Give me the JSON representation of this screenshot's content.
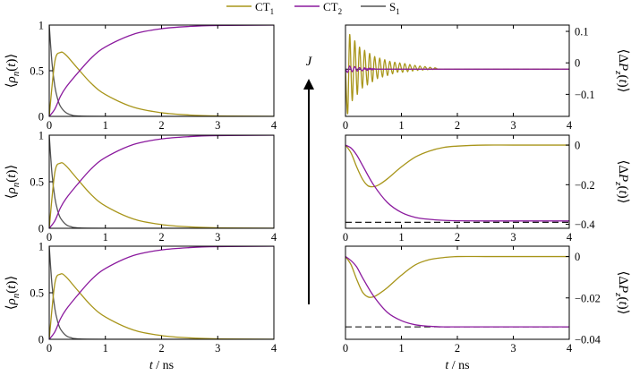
{
  "colors": {
    "CT1": "#a8951a",
    "CT2": "#8b1a9e",
    "S1": "#555555",
    "axis": "#000000",
    "dashed": "#000000"
  },
  "legend": {
    "items": [
      {
        "key": "CT1",
        "label": "CT",
        "sub": "1"
      },
      {
        "key": "CT2",
        "label": "CT",
        "sub": "2"
      },
      {
        "key": "S1",
        "label": "S",
        "sub": "1"
      }
    ]
  },
  "labels": {
    "left_ylabel": "⟨ρn(t)⟩",
    "right_ylabel": "⟨ΔPz(t)⟩",
    "xlabel": "t / ns",
    "arrow": "J"
  },
  "chart_data": [
    {
      "type": "line",
      "panel": "left-top",
      "xlim": [
        0,
        4
      ],
      "ylim": [
        0,
        1
      ],
      "xticks": [
        "0",
        "1",
        "2",
        "3",
        "4"
      ],
      "yticks": [
        "0",
        "0.5",
        "1"
      ],
      "series": [
        {
          "name": "CT1",
          "x": [
            0,
            0.1,
            0.2,
            0.3,
            0.5,
            0.75,
            1,
            1.5,
            2,
            2.5,
            3,
            4
          ],
          "values": [
            0,
            0.6,
            0.7,
            0.67,
            0.53,
            0.36,
            0.24,
            0.1,
            0.04,
            0.015,
            0.005,
            0
          ]
        },
        {
          "name": "CT2",
          "x": [
            0,
            0.1,
            0.2,
            0.3,
            0.5,
            0.75,
            1,
            1.5,
            2,
            2.5,
            3,
            4
          ],
          "values": [
            0,
            0.08,
            0.22,
            0.32,
            0.47,
            0.64,
            0.76,
            0.9,
            0.96,
            0.985,
            0.995,
            1
          ]
        },
        {
          "name": "S1",
          "x": [
            0,
            0.05,
            0.1,
            0.15,
            0.2,
            0.3,
            0.4,
            0.5,
            1,
            4
          ],
          "values": [
            1,
            0.58,
            0.33,
            0.19,
            0.11,
            0.04,
            0.015,
            0.005,
            0,
            0
          ]
        }
      ]
    },
    {
      "type": "line",
      "panel": "left-middle",
      "xlim": [
        0,
        4
      ],
      "ylim": [
        0,
        1
      ],
      "xticks": [
        "0",
        "1",
        "2",
        "3",
        "4"
      ],
      "yticks": [
        "0",
        "0.5",
        "1"
      ],
      "series": [
        {
          "name": "CT1",
          "x": [
            0,
            0.1,
            0.2,
            0.3,
            0.5,
            0.75,
            1,
            1.5,
            2,
            2.5,
            3,
            4
          ],
          "values": [
            0,
            0.6,
            0.7,
            0.67,
            0.53,
            0.36,
            0.24,
            0.1,
            0.04,
            0.015,
            0.005,
            0
          ]
        },
        {
          "name": "CT2",
          "x": [
            0,
            0.1,
            0.2,
            0.3,
            0.5,
            0.75,
            1,
            1.5,
            2,
            2.5,
            3,
            4
          ],
          "values": [
            0,
            0.08,
            0.22,
            0.32,
            0.47,
            0.64,
            0.76,
            0.9,
            0.96,
            0.985,
            0.995,
            1
          ]
        },
        {
          "name": "S1",
          "x": [
            0,
            0.05,
            0.1,
            0.15,
            0.2,
            0.3,
            0.4,
            0.5,
            1,
            4
          ],
          "values": [
            1,
            0.58,
            0.33,
            0.19,
            0.11,
            0.04,
            0.015,
            0.005,
            0,
            0
          ]
        }
      ]
    },
    {
      "type": "line",
      "panel": "left-bottom",
      "xlim": [
        0,
        4
      ],
      "ylim": [
        0,
        1
      ],
      "xticks": [
        "0",
        "1",
        "2",
        "3",
        "4"
      ],
      "yticks": [
        "0",
        "0.5",
        "1"
      ],
      "series": [
        {
          "name": "CT1",
          "x": [
            0,
            0.1,
            0.2,
            0.3,
            0.5,
            0.75,
            1,
            1.5,
            2,
            2.5,
            3,
            4
          ],
          "values": [
            0,
            0.6,
            0.7,
            0.67,
            0.53,
            0.36,
            0.24,
            0.1,
            0.04,
            0.015,
            0.005,
            0
          ]
        },
        {
          "name": "CT2",
          "x": [
            0,
            0.1,
            0.2,
            0.3,
            0.5,
            0.75,
            1,
            1.5,
            2,
            2.5,
            3,
            4
          ],
          "values": [
            0,
            0.08,
            0.22,
            0.32,
            0.47,
            0.64,
            0.76,
            0.9,
            0.96,
            0.985,
            0.995,
            1
          ]
        },
        {
          "name": "S1",
          "x": [
            0,
            0.05,
            0.1,
            0.15,
            0.2,
            0.3,
            0.4,
            0.5,
            1,
            4
          ],
          "values": [
            1,
            0.58,
            0.33,
            0.19,
            0.11,
            0.04,
            0.015,
            0.005,
            0,
            0
          ]
        }
      ]
    },
    {
      "type": "line",
      "panel": "right-top",
      "xlim": [
        0,
        4
      ],
      "ylim": [
        -0.17,
        0.12
      ],
      "xticks": [
        "0",
        "1",
        "2",
        "3",
        "4"
      ],
      "yticks": [
        {
          "v": 0.1,
          "label": "0.1"
        },
        {
          "v": 0,
          "label": "0"
        },
        {
          "v": -0.1,
          "label": "-0.1"
        }
      ],
      "dashed": -0.02,
      "series": [
        {
          "name": "CT1",
          "x": [
            0,
            0.04,
            0.075,
            0.12,
            0.165,
            0.21,
            0.25,
            0.3,
            0.34,
            0.39,
            0.43,
            0.48,
            0.52,
            0.57,
            0.61,
            0.66,
            0.7,
            0.75,
            0.79,
            0.84,
            0.88,
            0.93,
            0.97,
            1.02,
            1.06,
            1.11,
            1.15,
            1.2,
            1.24,
            1.29,
            1.33,
            1.38,
            1.42,
            1.47,
            1.51,
            1.56,
            1.6,
            1.65,
            1.7,
            4
          ],
          "values": [
            -0.02,
            -0.16,
            0.09,
            -0.12,
            0.07,
            -0.1,
            0.05,
            -0.08,
            0.04,
            -0.07,
            0.03,
            -0.06,
            0.02,
            -0.05,
            0.015,
            -0.045,
            0.01,
            -0.04,
            0.005,
            -0.035,
            0.002,
            -0.03,
            0,
            -0.03,
            -0.002,
            -0.028,
            -0.005,
            -0.026,
            -0.008,
            -0.024,
            -0.01,
            -0.023,
            -0.012,
            -0.022,
            -0.014,
            -0.021,
            -0.016,
            -0.02,
            -0.02,
            -0.02
          ]
        },
        {
          "name": "CT2",
          "x": [
            0,
            0.04,
            0.075,
            0.12,
            0.165,
            0.21,
            0.25,
            0.3,
            0.34,
            0.39,
            0.43,
            0.48,
            0.52,
            0.6,
            4
          ],
          "values": [
            -0.02,
            -0.03,
            -0.01,
            -0.028,
            -0.012,
            -0.026,
            -0.015,
            -0.025,
            -0.016,
            -0.024,
            -0.017,
            -0.022,
            -0.019,
            -0.02,
            -0.02
          ]
        }
      ]
    },
    {
      "type": "line",
      "panel": "right-middle",
      "xlim": [
        0,
        4
      ],
      "ylim": [
        -0.42,
        0.05
      ],
      "xticks": [
        "0",
        "1",
        "2",
        "3",
        "4"
      ],
      "yticks": [
        {
          "v": 0,
          "label": "0"
        },
        {
          "v": -0.2,
          "label": "-0.2"
        },
        {
          "v": -0.4,
          "label": "-0.4"
        }
      ],
      "dashed": -0.39,
      "series": [
        {
          "name": "CT1",
          "x": [
            0,
            0.1,
            0.2,
            0.3,
            0.4,
            0.5,
            0.6,
            0.75,
            1,
            1.25,
            1.5,
            1.75,
            2,
            2.5,
            3,
            4
          ],
          "values": [
            0,
            -0.04,
            -0.11,
            -0.17,
            -0.205,
            -0.21,
            -0.2,
            -0.17,
            -0.11,
            -0.06,
            -0.03,
            -0.012,
            -0.005,
            0,
            0,
            0
          ]
        },
        {
          "name": "CT2",
          "x": [
            0,
            0.1,
            0.2,
            0.3,
            0.5,
            0.75,
            1,
            1.25,
            1.5,
            1.75,
            2,
            2.5,
            3,
            4
          ],
          "values": [
            0,
            -0.015,
            -0.05,
            -0.1,
            -0.2,
            -0.29,
            -0.34,
            -0.365,
            -0.375,
            -0.38,
            -0.382,
            -0.383,
            -0.383,
            -0.383
          ]
        }
      ]
    },
    {
      "type": "line",
      "panel": "right-bottom",
      "xlim": [
        0,
        4
      ],
      "ylim": [
        -0.04,
        0.005
      ],
      "xticks": [
        "0",
        "1",
        "2",
        "3",
        "4"
      ],
      "yticks": [
        {
          "v": 0,
          "label": "0"
        },
        {
          "v": -0.02,
          "label": "-0.02"
        },
        {
          "v": -0.04,
          "label": "-0.04"
        }
      ],
      "dashed": -0.034,
      "series": [
        {
          "name": "CT1",
          "x": [
            0,
            0.1,
            0.2,
            0.3,
            0.4,
            0.5,
            0.6,
            0.75,
            1,
            1.25,
            1.5,
            1.75,
            2,
            2.5,
            3,
            4
          ],
          "values": [
            0,
            -0.004,
            -0.011,
            -0.017,
            -0.0195,
            -0.0195,
            -0.018,
            -0.015,
            -0.009,
            -0.004,
            -0.0015,
            -0.0005,
            0,
            0,
            0,
            0
          ]
        },
        {
          "name": "CT2",
          "x": [
            0,
            0.1,
            0.2,
            0.3,
            0.5,
            0.75,
            1,
            1.25,
            1.5,
            1.75,
            2,
            2.5,
            3,
            4
          ],
          "values": [
            0,
            -0.002,
            -0.005,
            -0.01,
            -0.019,
            -0.027,
            -0.031,
            -0.033,
            -0.0337,
            -0.034,
            -0.034,
            -0.034,
            -0.034,
            -0.034
          ]
        }
      ]
    }
  ]
}
